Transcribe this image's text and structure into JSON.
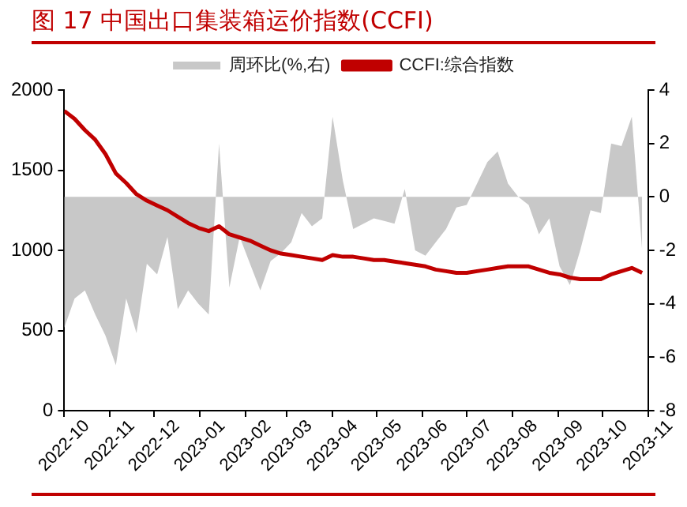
{
  "chart_data": {
    "type": "line",
    "title": "图 17 中国出口集装箱运价指数(CCFI)",
    "x": [
      "2022-10-01",
      "2022-10-08",
      "2022-10-15",
      "2022-10-22",
      "2022-10-29",
      "2022-11-05",
      "2022-11-12",
      "2022-11-19",
      "2022-11-26",
      "2022-12-03",
      "2022-12-10",
      "2022-12-17",
      "2022-12-24",
      "2022-12-31",
      "2023-01-07",
      "2023-01-14",
      "2023-01-21",
      "2023-01-28",
      "2023-02-04",
      "2023-02-11",
      "2023-02-18",
      "2023-02-25",
      "2023-03-04",
      "2023-03-11",
      "2023-03-18",
      "2023-03-25",
      "2023-04-01",
      "2023-04-08",
      "2023-04-15",
      "2023-04-22",
      "2023-04-29",
      "2023-05-06",
      "2023-05-13",
      "2023-05-20",
      "2023-05-27",
      "2023-06-03",
      "2023-06-10",
      "2023-06-17",
      "2023-06-24",
      "2023-07-01",
      "2023-07-08",
      "2023-07-15",
      "2023-07-22",
      "2023-07-29",
      "2023-08-05",
      "2023-08-12",
      "2023-08-19",
      "2023-08-26",
      "2023-09-02",
      "2023-09-09",
      "2023-09-16",
      "2023-09-23",
      "2023-09-30",
      "2023-10-07",
      "2023-10-14",
      "2023-10-21",
      "2023-10-28"
    ],
    "series": [
      {
        "name": "周环比(%,右)",
        "type": "area",
        "axis": "y2",
        "color": "#c8c8c8",
        "values": [
          -4.9,
          -3.8,
          -3.5,
          -4.4,
          -5.2,
          -6.3,
          -3.8,
          -5.1,
          -2.5,
          -2.9,
          -1.5,
          -4.2,
          -3.5,
          -4.0,
          -4.4,
          2.0,
          -3.4,
          -1.5,
          -2.5,
          -3.5,
          -2.4,
          -2.1,
          -1.7,
          -0.6,
          -1.1,
          -0.8,
          3.0,
          0.6,
          -1.2,
          -1.0,
          -0.8,
          -0.9,
          -1.0,
          0.3,
          -2.0,
          -2.2,
          -1.7,
          -1.2,
          -0.4,
          -0.3,
          0.5,
          1.3,
          1.7,
          0.5,
          0,
          -0.3,
          -1.4,
          -0.8,
          -2.6,
          -3.3,
          -2.0,
          -0.5,
          -0.6,
          2.0,
          1.9,
          3.0,
          -2.0
        ]
      },
      {
        "name": "CCFI:综合指数",
        "type": "line",
        "color": "#c00000",
        "values": [
          1870,
          1820,
          1750,
          1690,
          1600,
          1480,
          1420,
          1350,
          1310,
          1280,
          1250,
          1210,
          1170,
          1140,
          1120,
          1150,
          1100,
          1080,
          1060,
          1030,
          1000,
          980,
          970,
          960,
          950,
          940,
          970,
          960,
          960,
          950,
          940,
          940,
          930,
          920,
          910,
          900,
          880,
          870,
          860,
          860,
          870,
          880,
          890,
          900,
          900,
          900,
          880,
          860,
          850,
          830,
          820,
          820,
          820,
          850,
          870,
          890,
          860
        ]
      }
    ],
    "xlim": [
      "2022-10-01",
      "2023-11-01"
    ],
    "xticks": [
      "2022-10",
      "2022-11",
      "2022-12",
      "2023-01",
      "2023-02",
      "2023-03",
      "2023-04",
      "2023-05",
      "2023-06",
      "2023-07",
      "2023-08",
      "2023-09",
      "2023-10",
      "2023-11"
    ],
    "ylim": [
      0,
      2000
    ],
    "yticks": [
      0,
      500,
      1000,
      1500,
      2000
    ],
    "y2lim": [
      -8,
      4
    ],
    "y2ticks": [
      -8,
      -6,
      -4,
      -2,
      0,
      2,
      4
    ],
    "grid": false,
    "legend": "top",
    "marker": "none",
    "line_style": "solid"
  }
}
